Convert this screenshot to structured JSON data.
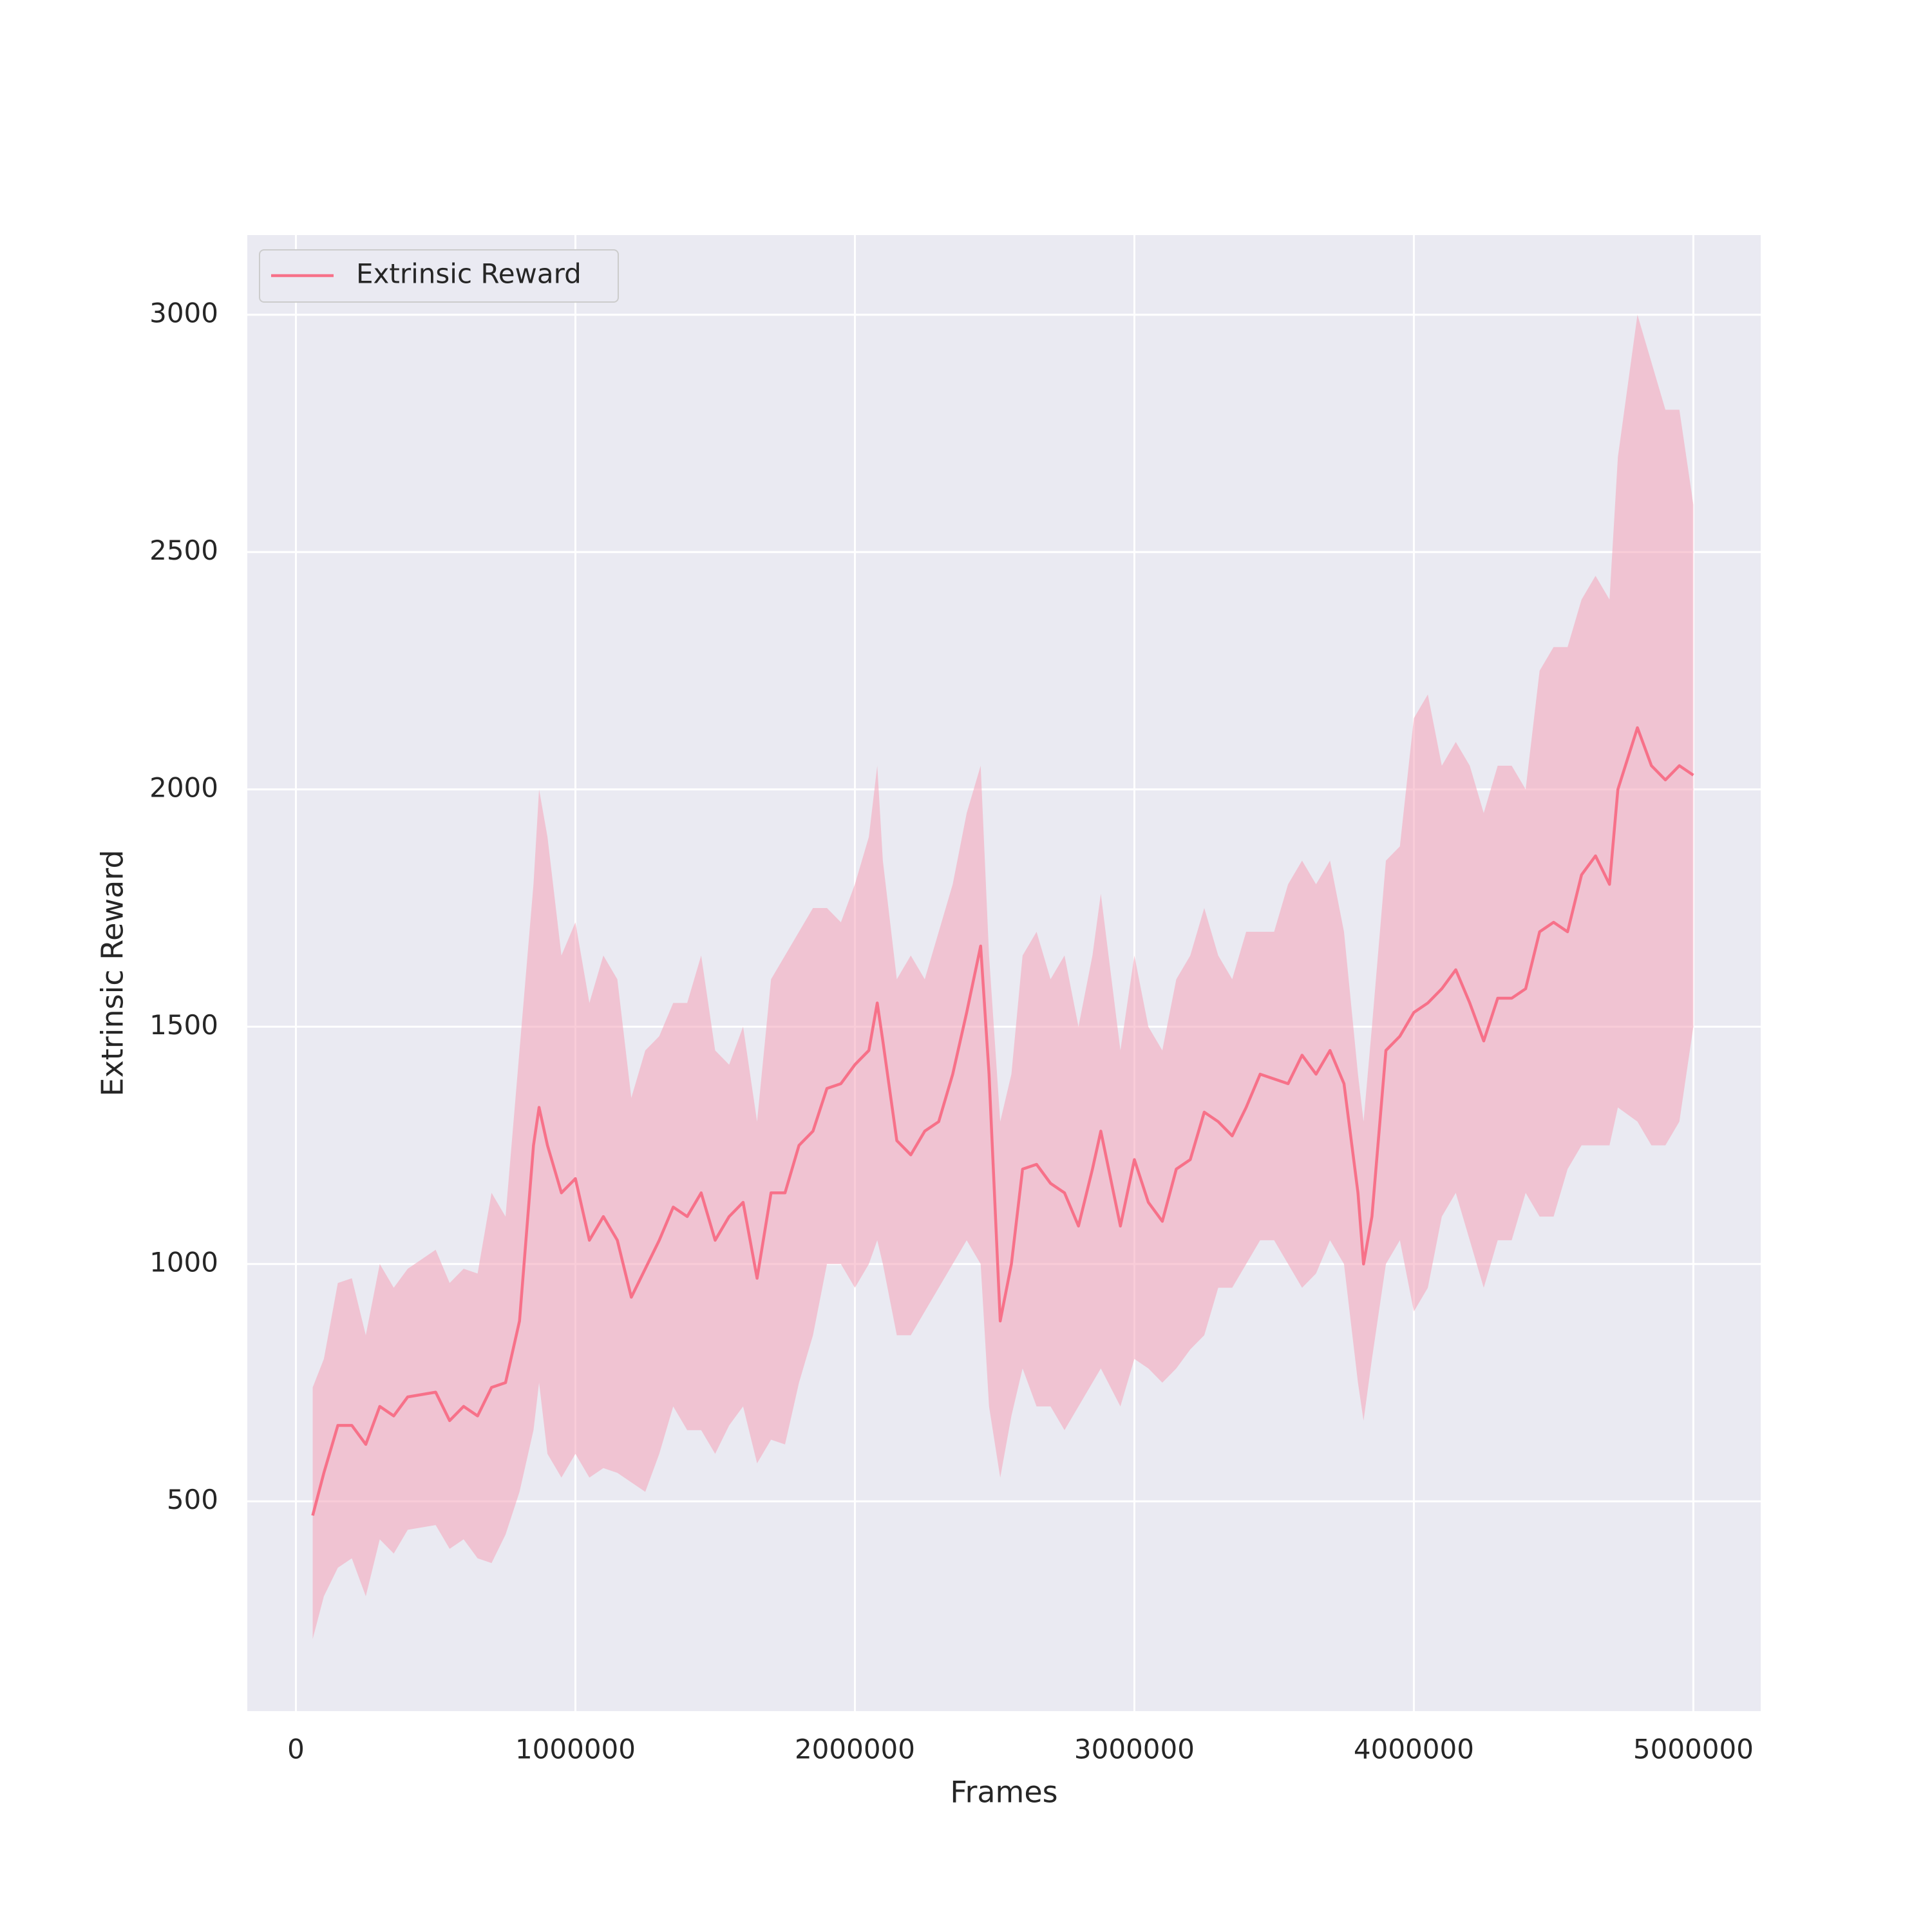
{
  "chart_data": {
    "type": "line",
    "x_label": "Frames",
    "y_label": "Extrinsic Reward",
    "x": [
      60000,
      100000,
      150000,
      200000,
      250000,
      300000,
      350000,
      400000,
      500000,
      550000,
      600000,
      650000,
      700000,
      750000,
      800000,
      850000,
      870000,
      900000,
      950000,
      1000000,
      1050000,
      1100000,
      1150000,
      1200000,
      1250000,
      1300000,
      1350000,
      1400000,
      1450000,
      1500000,
      1550000,
      1600000,
      1650000,
      1700000,
      1750000,
      1800000,
      1850000,
      1900000,
      1950000,
      2000000,
      2050000,
      2080000,
      2100000,
      2150000,
      2200000,
      2250000,
      2300000,
      2350000,
      2400000,
      2450000,
      2480000,
      2520000,
      2560000,
      2600000,
      2650000,
      2700000,
      2750000,
      2800000,
      2850000,
      2880000,
      2950000,
      3000000,
      3050000,
      3100000,
      3150000,
      3200000,
      3250000,
      3300000,
      3350000,
      3400000,
      3450000,
      3500000,
      3550000,
      3600000,
      3650000,
      3700000,
      3750000,
      3800000,
      3820000,
      3850000,
      3900000,
      3950000,
      4000000,
      4050000,
      4100000,
      4150000,
      4200000,
      4250000,
      4300000,
      4350000,
      4400000,
      4450000,
      4500000,
      4550000,
      4600000,
      4650000,
      4700000,
      4730000,
      4800000,
      4850000,
      4900000,
      4950000,
      5000000
    ],
    "series": [
      {
        "name": "Extrinsic Reward",
        "color": "#f77189",
        "band_color": "#f4a3b8",
        "values": [
          470,
          560,
          660,
          660,
          620,
          700,
          680,
          720,
          730,
          670,
          700,
          680,
          740,
          750,
          880,
          1250,
          1330,
          1250,
          1150,
          1180,
          1050,
          1100,
          1050,
          930,
          990,
          1050,
          1120,
          1100,
          1150,
          1050,
          1100,
          1130,
          970,
          1150,
          1150,
          1250,
          1280,
          1370,
          1380,
          1420,
          1450,
          1550,
          1470,
          1260,
          1230,
          1280,
          1300,
          1400,
          1530,
          1670,
          1400,
          880,
          1000,
          1200,
          1210,
          1170,
          1150,
          1080,
          1200,
          1280,
          1080,
          1220,
          1130,
          1090,
          1200,
          1220,
          1320,
          1300,
          1270,
          1330,
          1400,
          1390,
          1380,
          1440,
          1400,
          1450,
          1380,
          1150,
          1000,
          1100,
          1450,
          1480,
          1530,
          1550,
          1580,
          1620,
          1550,
          1470,
          1560,
          1560,
          1580,
          1700,
          1720,
          1700,
          1820,
          1860,
          1800,
          2000,
          2130,
          2050,
          2020,
          2050,
          2030
        ],
        "lower": [
          210,
          300,
          360,
          380,
          300,
          420,
          390,
          440,
          450,
          400,
          420,
          380,
          370,
          430,
          520,
          650,
          750,
          600,
          550,
          600,
          550,
          570,
          560,
          540,
          520,
          600,
          700,
          650,
          650,
          600,
          660,
          700,
          580,
          630,
          620,
          750,
          850,
          1000,
          1000,
          950,
          1000,
          1050,
          1000,
          850,
          850,
          900,
          950,
          1000,
          1050,
          1000,
          700,
          550,
          680,
          780,
          700,
          700,
          650,
          700,
          750,
          780,
          700,
          800,
          780,
          750,
          780,
          820,
          850,
          950,
          950,
          1000,
          1050,
          1050,
          1000,
          950,
          980,
          1050,
          1000,
          750,
          670,
          800,
          1000,
          1050,
          900,
          950,
          1100,
          1150,
          1050,
          950,
          1050,
          1050,
          1150,
          1100,
          1100,
          1200,
          1250,
          1250,
          1250,
          1330,
          1300,
          1250,
          1250,
          1300,
          1500
        ],
        "upper": [
          740,
          800,
          960,
          970,
          850,
          1000,
          950,
          990,
          1030,
          960,
          990,
          980,
          1150,
          1100,
          1450,
          1800,
          2000,
          1900,
          1650,
          1720,
          1550,
          1650,
          1600,
          1350,
          1450,
          1480,
          1550,
          1550,
          1650,
          1450,
          1420,
          1500,
          1300,
          1600,
          1650,
          1700,
          1750,
          1750,
          1720,
          1800,
          1900,
          2050,
          1850,
          1600,
          1650,
          1600,
          1700,
          1800,
          1950,
          2050,
          1650,
          1300,
          1400,
          1650,
          1700,
          1600,
          1650,
          1500,
          1650,
          1780,
          1450,
          1650,
          1500,
          1450,
          1600,
          1650,
          1750,
          1650,
          1600,
          1700,
          1700,
          1700,
          1800,
          1850,
          1800,
          1850,
          1700,
          1400,
          1300,
          1500,
          1850,
          1880,
          2150,
          2200,
          2050,
          2100,
          2050,
          1950,
          2050,
          2050,
          2000,
          2250,
          2300,
          2300,
          2400,
          2450,
          2400,
          2700,
          3000,
          2900,
          2800,
          2800,
          2600
        ]
      }
    ],
    "xlim": [
      -174000,
      5241000
    ],
    "ylim": [
      58,
      3168
    ],
    "xticks": [
      0,
      1000000,
      2000000,
      3000000,
      4000000,
      5000000
    ],
    "yticks": [
      500,
      1000,
      1500,
      2000,
      2500,
      3000
    ],
    "grid": true,
    "legend": "upper left"
  }
}
